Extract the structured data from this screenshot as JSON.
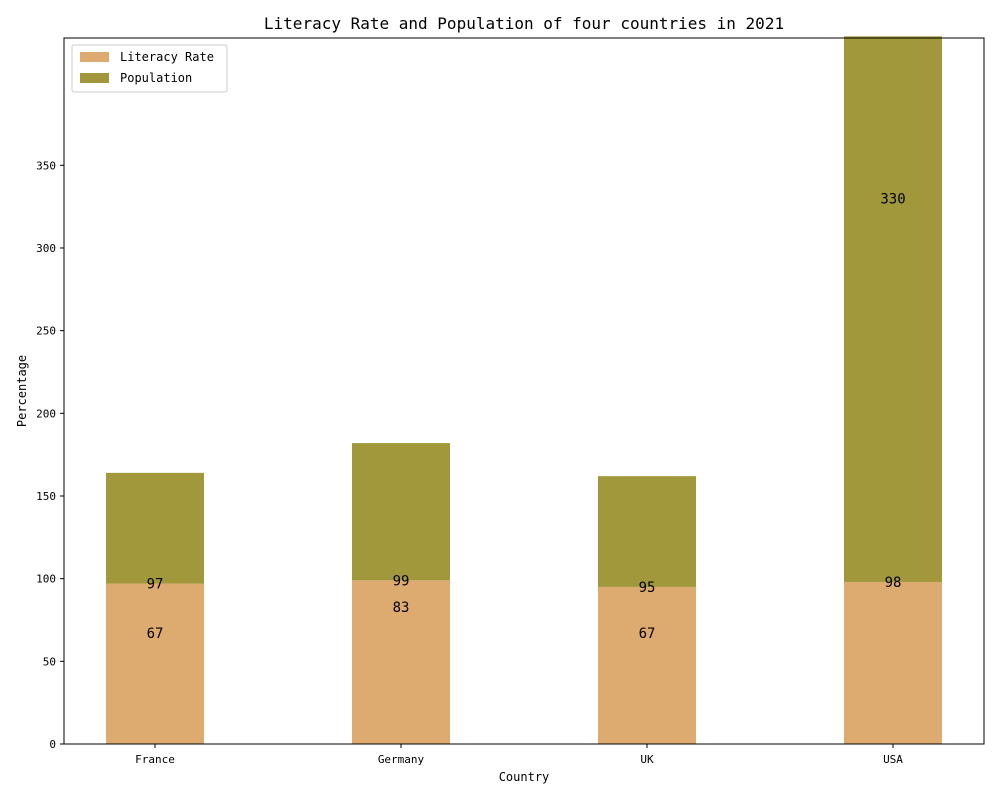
{
  "chart_data": {
    "type": "bar",
    "stacked": true,
    "title": "Literacy Rate and Population of four countries in 2021",
    "xlabel": "Country",
    "ylabel": "Percentage",
    "categories": [
      "France",
      "Germany",
      "UK",
      "USA"
    ],
    "series": [
      {
        "name": "Literacy Rate",
        "values": [
          97,
          99,
          95,
          98
        ],
        "color": "#ddaa70",
        "labels": [
          "97",
          "99",
          "95",
          "98"
        ]
      },
      {
        "name": "Population",
        "values": [
          67,
          83,
          67,
          330
        ],
        "color": "#a0983a",
        "labels": [
          "67",
          "83",
          "67",
          "330"
        ]
      }
    ],
    "ylim": [
      0,
      427
    ],
    "yticks": [
      0,
      50,
      100,
      150,
      200,
      250,
      300,
      350
    ],
    "grid": false,
    "legend_position": "top-left"
  }
}
